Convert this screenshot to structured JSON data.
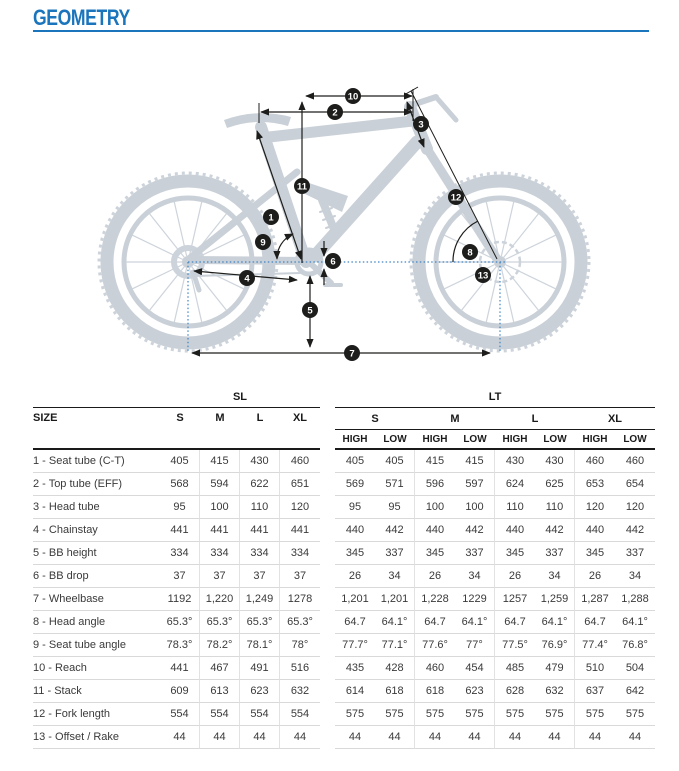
{
  "page": {
    "title": "GEOMETRY"
  },
  "colors": {
    "accent": "#1b75bc",
    "bike_silhouette": "#c9d0d7",
    "annotation": "#1d1d1b",
    "reference_dotted": "#3d85c6"
  },
  "diagram": {
    "markers": [
      "1",
      "2",
      "3",
      "4",
      "5",
      "6",
      "7",
      "8",
      "9",
      "10",
      "11",
      "12",
      "13"
    ]
  },
  "table": {
    "size_header": "SIZE",
    "groups": [
      {
        "label": "SL",
        "sizes": [
          "S",
          "M",
          "L",
          "XL"
        ]
      },
      {
        "label": "LT",
        "sizes": [
          "S",
          "M",
          "L",
          "XL"
        ],
        "sub": [
          "HIGH",
          "LOW"
        ]
      }
    ],
    "rows": [
      {
        "label": "1 - Seat tube (C-T)",
        "sl": [
          "405",
          "415",
          "430",
          "460"
        ],
        "lt": [
          "405",
          "405",
          "415",
          "415",
          "430",
          "430",
          "460",
          "460"
        ]
      },
      {
        "label": "2 - Top tube (EFF)",
        "sl": [
          "568",
          "594",
          "622",
          "651"
        ],
        "lt": [
          "569",
          "571",
          "596",
          "597",
          "624",
          "625",
          "653",
          "654"
        ]
      },
      {
        "label": "3 - Head tube",
        "sl": [
          "95",
          "100",
          "110",
          "120"
        ],
        "lt": [
          "95",
          "95",
          "100",
          "100",
          "110",
          "110",
          "120",
          "120"
        ]
      },
      {
        "label": "4 - Chainstay",
        "sl": [
          "441",
          "441",
          "441",
          "441"
        ],
        "lt": [
          "440",
          "442",
          "440",
          "442",
          "440",
          "442",
          "440",
          "442"
        ]
      },
      {
        "label": "5 - BB height",
        "sl": [
          "334",
          "334",
          "334",
          "334"
        ],
        "lt": [
          "345",
          "337",
          "345",
          "337",
          "345",
          "337",
          "345",
          "337"
        ]
      },
      {
        "label": "6 - BB drop",
        "sl": [
          "37",
          "37",
          "37",
          "37"
        ],
        "lt": [
          "26",
          "34",
          "26",
          "34",
          "26",
          "34",
          "26",
          "34"
        ]
      },
      {
        "label": "7 - Wheelbase",
        "sl": [
          "1192",
          "1,220",
          "1,249",
          "1278"
        ],
        "lt": [
          "1,201",
          "1,201",
          "1,228",
          "1229",
          "1257",
          "1,259",
          "1,287",
          "1,288"
        ]
      },
      {
        "label": "8 - Head angle",
        "sl": [
          "65.3°",
          "65.3°",
          "65.3°",
          "65.3°"
        ],
        "lt": [
          "64.7",
          "64.1°",
          "64.7",
          "64.1°",
          "64.7",
          "64.1°",
          "64.7",
          "64.1°"
        ]
      },
      {
        "label": "9 - Seat tube angle",
        "sl": [
          "78.3°",
          "78.2°",
          "78.1°",
          "78°"
        ],
        "lt": [
          "77.7°",
          "77.1°",
          "77.6°",
          "77°",
          "77.5°",
          "76.9°",
          "77.4°",
          "76.8°"
        ]
      },
      {
        "label": "10 - Reach",
        "sl": [
          "441",
          "467",
          "491",
          "516"
        ],
        "lt": [
          "435",
          "428",
          "460",
          "454",
          "485",
          "479",
          "510",
          "504"
        ]
      },
      {
        "label": "11 - Stack",
        "sl": [
          "609",
          "613",
          "623",
          "632"
        ],
        "lt": [
          "614",
          "618",
          "618",
          "623",
          "628",
          "632",
          "637",
          "642"
        ]
      },
      {
        "label": "12 - Fork length",
        "sl": [
          "554",
          "554",
          "554",
          "554"
        ],
        "lt": [
          "575",
          "575",
          "575",
          "575",
          "575",
          "575",
          "575",
          "575"
        ]
      },
      {
        "label": "13 - Offset / Rake",
        "sl": [
          "44",
          "44",
          "44",
          "44"
        ],
        "lt": [
          "44",
          "44",
          "44",
          "44",
          "44",
          "44",
          "44",
          "44"
        ]
      }
    ]
  }
}
